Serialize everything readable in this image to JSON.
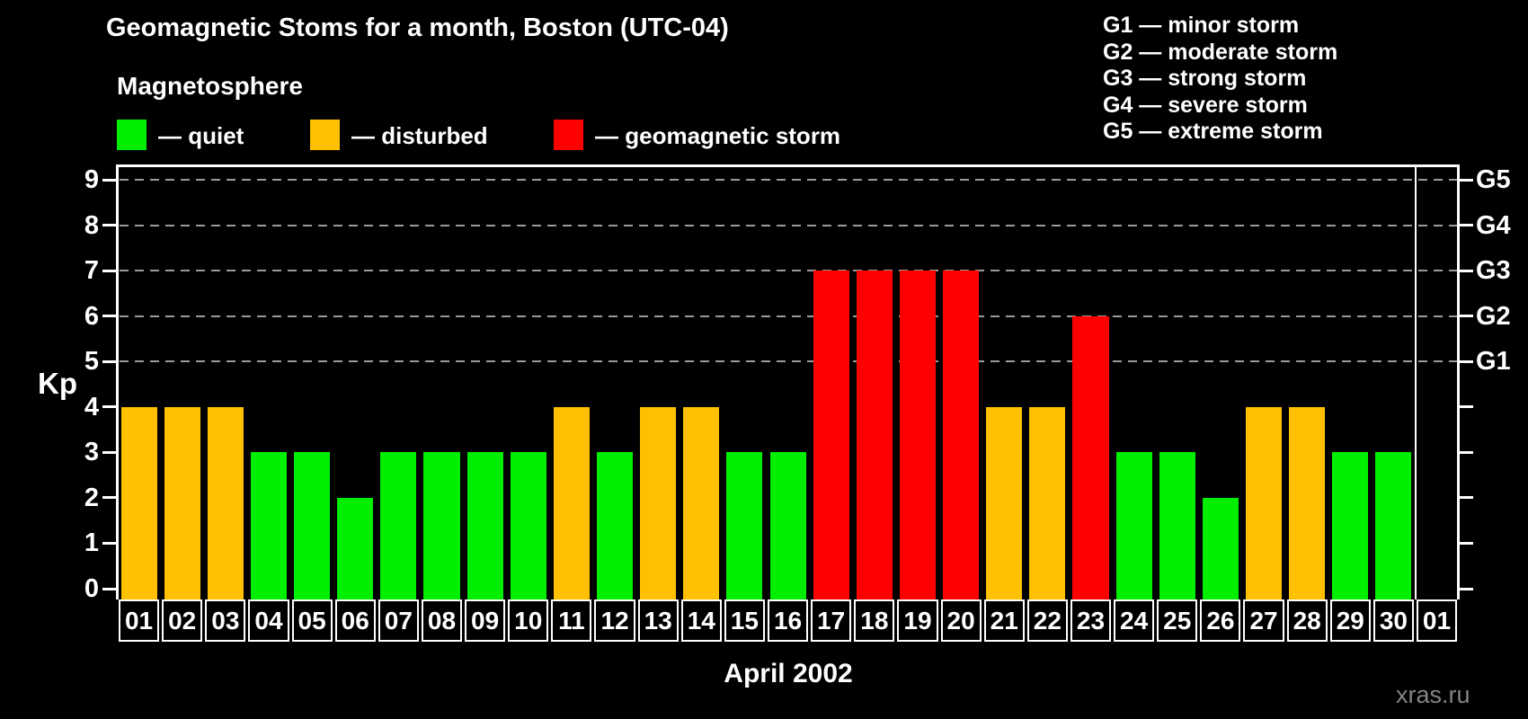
{
  "title": "Geomagnetic Stoms for a month, Boston (UTC-04)",
  "watermark": "xras.ru",
  "legend": {
    "heading": "Magnetosphere",
    "items": [
      {
        "key": "quiet",
        "label": "— quiet",
        "color": "#00ee00"
      },
      {
        "key": "disturbed",
        "label": "— disturbed",
        "color": "#ffc000"
      },
      {
        "key": "storm",
        "label": "— geomagnetic storm",
        "color": "#ff0000"
      }
    ]
  },
  "g_scale_legend": [
    "G1 — minor storm",
    "G2 — moderate storm",
    "G3 — strong storm",
    "G4 — severe storm",
    "G5 — extreme storm"
  ],
  "chart_data": {
    "type": "bar",
    "title": "Geomagnetic Stoms for a month, Boston (UTC-04)",
    "xlabel": "April 2002",
    "ylabel": "Kp",
    "ylim": [
      0,
      9
    ],
    "yticks": [
      0,
      1,
      2,
      3,
      4,
      5,
      6,
      7,
      8,
      9
    ],
    "gridlines_at_kp": [
      5,
      6,
      7,
      8,
      9
    ],
    "grid": "horizontal dashed at Kp 5-9",
    "legend_position": "top-left",
    "right_axis_labels": {
      "5": "G1",
      "6": "G2",
      "7": "G3",
      "8": "G4",
      "9": "G5"
    },
    "categories": [
      "01",
      "02",
      "03",
      "04",
      "05",
      "06",
      "07",
      "08",
      "09",
      "10",
      "11",
      "12",
      "13",
      "14",
      "15",
      "16",
      "17",
      "18",
      "19",
      "20",
      "21",
      "22",
      "23",
      "24",
      "25",
      "26",
      "27",
      "28",
      "29",
      "30",
      "01"
    ],
    "values": [
      4,
      4,
      4,
      3,
      3,
      2,
      3,
      3,
      3,
      3,
      4,
      3,
      4,
      4,
      3,
      3,
      7,
      7,
      7,
      7,
      4,
      4,
      6,
      3,
      3,
      2,
      4,
      4,
      3,
      3,
      null
    ],
    "statuses": [
      "disturbed",
      "disturbed",
      "disturbed",
      "quiet",
      "quiet",
      "quiet",
      "quiet",
      "quiet",
      "quiet",
      "quiet",
      "disturbed",
      "quiet",
      "disturbed",
      "disturbed",
      "quiet",
      "quiet",
      "storm",
      "storm",
      "storm",
      "storm",
      "disturbed",
      "disturbed",
      "storm",
      "quiet",
      "quiet",
      "quiet",
      "disturbed",
      "disturbed",
      "quiet",
      "quiet",
      null
    ],
    "status_colors": {
      "quiet": "#00ee00",
      "disturbed": "#ffc000",
      "storm": "#ff0000"
    },
    "month_boundary_after_day": 30
  }
}
